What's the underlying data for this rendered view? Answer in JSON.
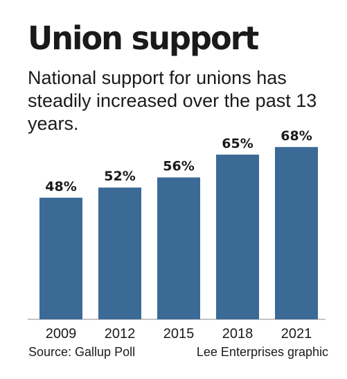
{
  "title": "Union support",
  "subtitle": "National support for unions has steadily increased over the past 13 years.",
  "source": "Source: Gallup Poll",
  "credit": "Lee Enterprises graphic",
  "colors": {
    "bar": "#3b6a96",
    "text": "#1a1a1a"
  },
  "chart_data": {
    "type": "bar",
    "categories": [
      "2009",
      "2012",
      "2015",
      "2018",
      "2021"
    ],
    "values": [
      48,
      52,
      56,
      65,
      68
    ],
    "data_labels": [
      "48%",
      "52%",
      "56%",
      "65%",
      "68%"
    ],
    "title": "Union support",
    "subtitle": "National support for unions has steadily increased over the past 13 years.",
    "xlabel": "",
    "ylabel": "",
    "ylim": [
      0,
      100
    ],
    "grid": false,
    "legend": "none"
  }
}
